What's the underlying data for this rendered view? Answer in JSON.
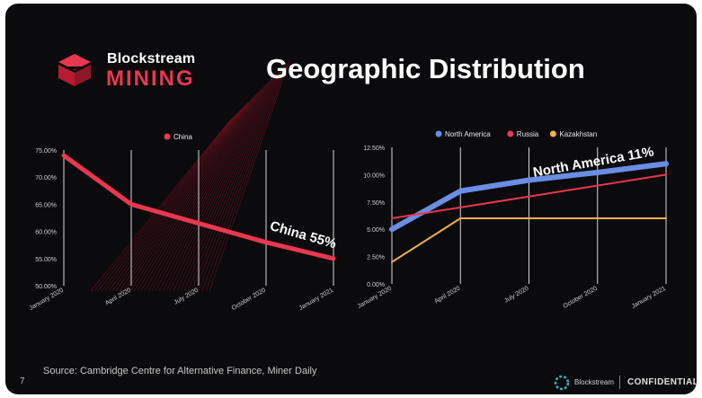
{
  "slide": {
    "title": "Geographic Distribution",
    "page_number": "7",
    "source": "Source: Cambridge Centre for Alternative Finance, Miner Daily",
    "logo": {
      "line1": "Blockstream",
      "line2": "MINING"
    },
    "footer_brand": "Blockstream",
    "footer_label": "CONFIDENTIAL"
  },
  "chart_data": [
    {
      "type": "line",
      "x": [
        "January 2020",
        "April 2020",
        "July 2020",
        "October 2020",
        "January 2021"
      ],
      "yticks": [
        "75.00%",
        "70.00%",
        "65.00%",
        "60.00%",
        "55.00%",
        "50.00%"
      ],
      "ylim": [
        50,
        75
      ],
      "series": [
        {
          "name": "China",
          "color": "#e8384f",
          "values": [
            74,
            65,
            61.5,
            58,
            55
          ]
        }
      ],
      "annotation": "China 55%",
      "legend_position": "top"
    },
    {
      "type": "line",
      "x": [
        "January 2020",
        "April 2020",
        "July 2020",
        "October 2020",
        "January 2021"
      ],
      "yticks": [
        "12.50%",
        "10.00%",
        "7.50%",
        "5.00%",
        "2.50%",
        "0.00%"
      ],
      "ylim": [
        0,
        12.5
      ],
      "series": [
        {
          "name": "North America",
          "color": "#6b8de3",
          "values": [
            5,
            8.5,
            9.5,
            10.2,
            11
          ]
        },
        {
          "name": "Russia",
          "color": "#e8384f",
          "values": [
            6,
            7,
            8,
            9,
            10
          ]
        },
        {
          "name": "Kazakhstan",
          "color": "#f2b24d",
          "values": [
            2,
            6,
            6,
            6,
            6
          ]
        }
      ],
      "annotation": "North America 11%",
      "legend_position": "top"
    }
  ]
}
